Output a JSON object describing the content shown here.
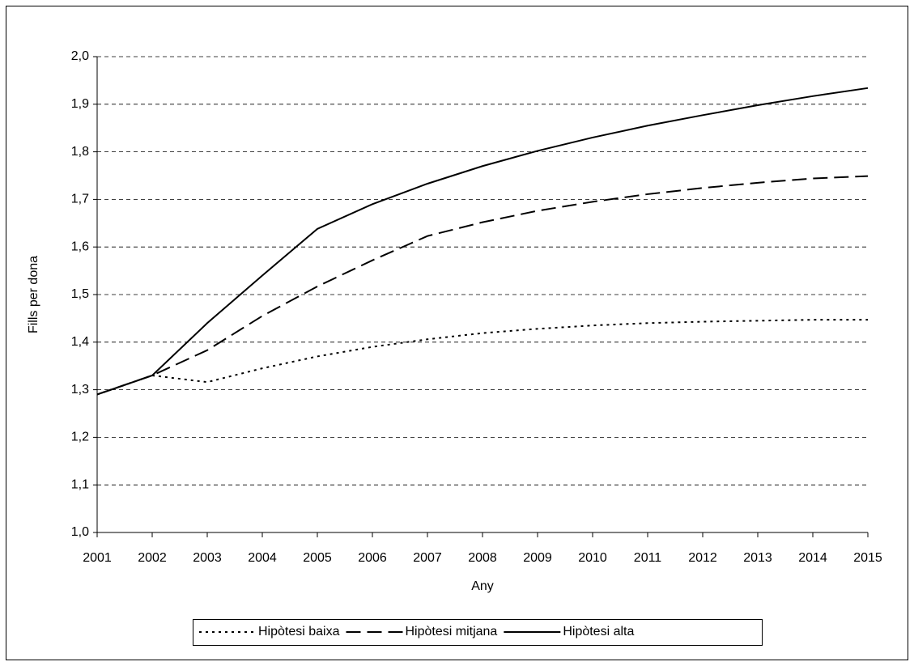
{
  "chart_data": {
    "type": "line",
    "x_label": "Any",
    "y_label": "Fills per dona",
    "categories": [
      "2001",
      "2002",
      "2003",
      "2004",
      "2005",
      "2006",
      "2007",
      "2008",
      "2009",
      "2010",
      "2011",
      "2012",
      "2013",
      "2014",
      "2015"
    ],
    "series": [
      {
        "name": "Hipòtesi baixa",
        "color": "#000000",
        "dash": "dotted",
        "values": [
          1.29,
          1.33,
          1.316,
          1.345,
          1.37,
          1.39,
          1.406,
          1.419,
          1.428,
          1.435,
          1.44,
          1.443,
          1.445,
          1.447,
          1.447
        ]
      },
      {
        "name": "Hipòtesi mitjana",
        "color": "#000000",
        "dash": "dashed",
        "values": [
          1.29,
          1.33,
          1.383,
          1.455,
          1.517,
          1.572,
          1.623,
          1.652,
          1.676,
          1.695,
          1.711,
          1.724,
          1.735,
          1.744,
          1.749
        ]
      },
      {
        "name": "Hipòtesi alta",
        "color": "#000000",
        "dash": "solid",
        "values": [
          1.29,
          1.33,
          1.44,
          1.54,
          1.638,
          1.69,
          1.733,
          1.77,
          1.802,
          1.83,
          1.855,
          1.877,
          1.898,
          1.917,
          1.934
        ]
      }
    ],
    "ylim": [
      1.0,
      2.0
    ],
    "yticks": [
      {
        "value": 1.0,
        "label": "1,0"
      },
      {
        "value": 1.1,
        "label": "1,1"
      },
      {
        "value": 1.2,
        "label": "1,2"
      },
      {
        "value": 1.3,
        "label": "1,3"
      },
      {
        "value": 1.4,
        "label": "1,4"
      },
      {
        "value": 1.5,
        "label": "1,5"
      },
      {
        "value": 1.6,
        "label": "1,6"
      },
      {
        "value": 1.7,
        "label": "1,7"
      },
      {
        "value": 1.8,
        "label": "1,8"
      },
      {
        "value": 1.9,
        "label": "1,9"
      },
      {
        "value": 2.0,
        "label": "2,0"
      }
    ],
    "grid": true,
    "legend_position": "bottom"
  }
}
